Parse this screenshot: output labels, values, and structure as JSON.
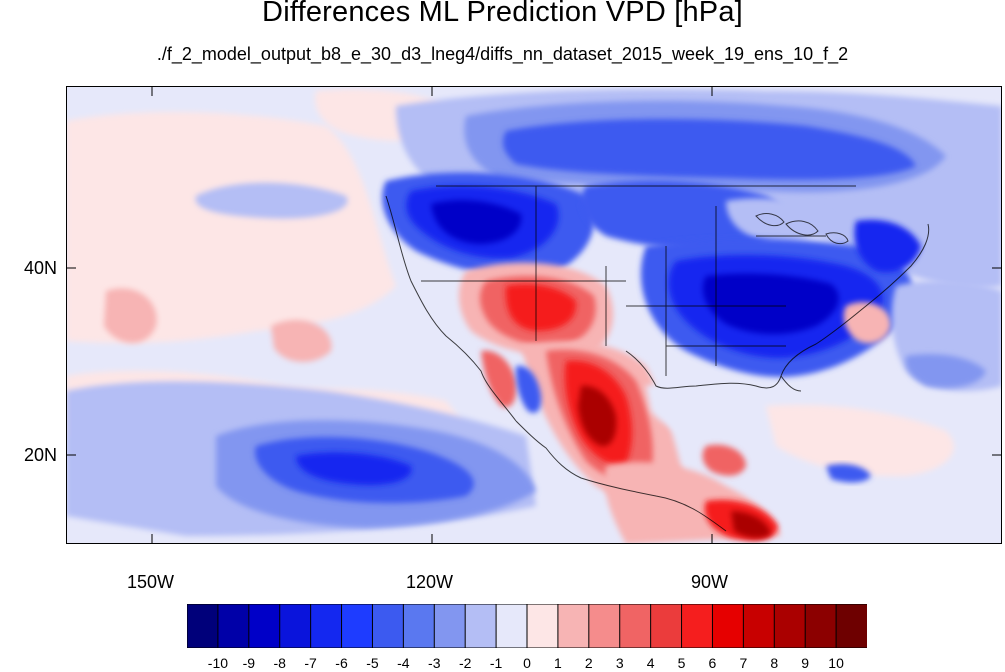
{
  "title": "Differences ML Prediction VPD [hPa]",
  "subtitle": "./f_2_model_output_b8_e_30_d3_lneg4/diffs_nn_dataset_2015_week_19_ens_10_f_2",
  "axes": {
    "lat_labels": [
      "40N",
      "20N"
    ],
    "lon_labels": [
      "150W",
      "120W",
      "90W"
    ]
  },
  "colorbar": {
    "labels": [
      "-10",
      "-9",
      "-8",
      "-7",
      "-6",
      "-5",
      "-4",
      "-3",
      "-2",
      "-1",
      "0",
      "1",
      "2",
      "3",
      "4",
      "5",
      "6",
      "7",
      "8",
      "9",
      "10"
    ],
    "colors": [
      "#00007a",
      "#0000a8",
      "#0000c8",
      "#0a14dc",
      "#1428f0",
      "#1e3cff",
      "#3c5af0",
      "#5a78f0",
      "#8296f0",
      "#b4bef5",
      "#e6e8fa",
      "#fde6e6",
      "#f7b4b4",
      "#f58c8c",
      "#f06464",
      "#eb3c3c",
      "#f51e1e",
      "#e60000",
      "#c80000",
      "#aa0000",
      "#8c0000",
      "#6e0000"
    ]
  },
  "map_colors": {
    "ocean_base": "#e6e8fa",
    "light_blue": "#b4bef5",
    "mid_blue": "#8296f0",
    "blue": "#3c5af0",
    "deep_blue": "#1428f0",
    "darkest_blue": "#0000c8",
    "light_red": "#fde6e6",
    "pink": "#f7b4b4",
    "salmon": "#f06464",
    "red": "#f51e1e",
    "dark_red": "#aa0000"
  }
}
